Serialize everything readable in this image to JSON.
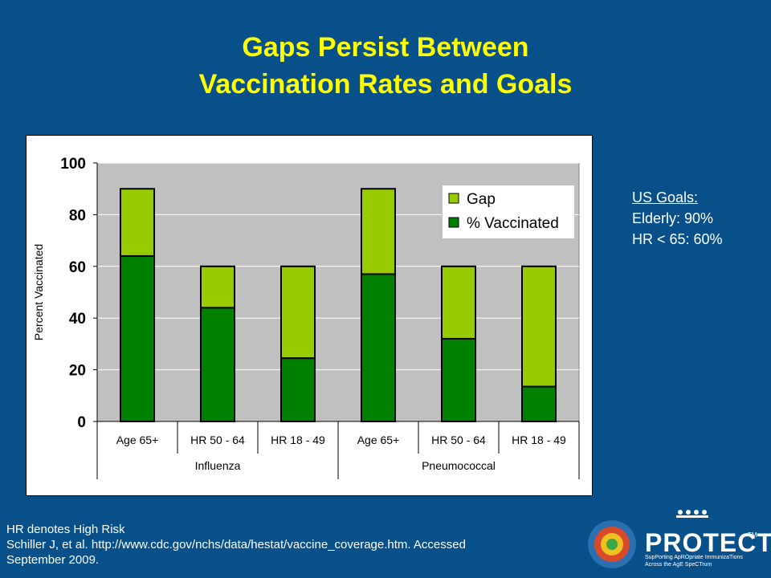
{
  "slide": {
    "title_line1": "Gaps Persist Between",
    "title_line2": "Vaccination Rates and Goals",
    "background_color": "#07508a",
    "title_color": "#ffff00"
  },
  "goals": {
    "title": "US Goals:",
    "lines": [
      "Elderly: 90%",
      "HR < 65: 60%"
    ]
  },
  "footnote": {
    "line1": "HR denotes High Risk",
    "line2": "Schiller J, et al. http://www.cdc.gov/nchs/data/hestat/vaccine_coverage.htm. Accessed",
    "line3": "September 2009."
  },
  "logo": {
    "wordmark": "PROTECT",
    "trademark": "TM",
    "tagline_line1": "SupPorting ApROpriate ImmunizaTions",
    "tagline_line2": "Across the AgE SpeCTrum"
  },
  "chart_data": {
    "type": "bar",
    "stacked": true,
    "categories": [
      "Age 65+",
      "HR 50 - 64",
      "HR 18 - 49",
      "Age 65+",
      "HR 50 - 64",
      "HR 18 - 49"
    ],
    "groups": [
      {
        "label": "Influenza",
        "categories": [
          "Age 65+",
          "HR 50 - 64",
          "HR 18 - 49"
        ]
      },
      {
        "label": "Pneumococcal",
        "categories": [
          "Age 65+",
          "HR 50 - 64",
          "HR 18 - 49"
        ]
      }
    ],
    "series": [
      {
        "name": "% Vaccinated",
        "values": [
          64,
          44,
          24.5,
          57,
          32,
          13.5
        ],
        "color": "#008000"
      },
      {
        "name": "Gap",
        "values": [
          26,
          16,
          35.5,
          33,
          28,
          46.5
        ],
        "color": "#99cc00"
      }
    ],
    "legend_order": [
      "Gap",
      "% Vaccinated"
    ],
    "ylabel": "Percent Vaccinated",
    "ylim": [
      0,
      100
    ],
    "yticks": [
      0,
      20,
      40,
      60,
      80,
      100
    ],
    "grid": true,
    "legend_position": "top-right",
    "plot_background": "#c0c0c0"
  }
}
